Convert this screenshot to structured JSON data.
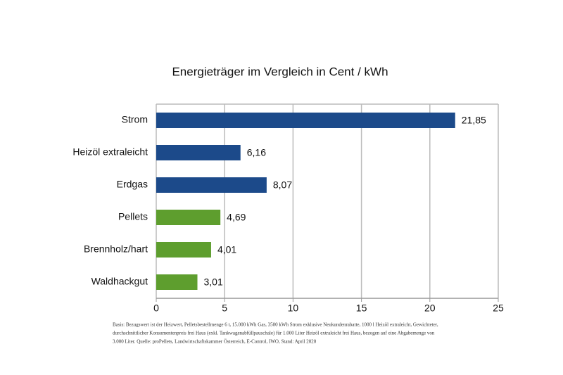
{
  "chart_data": {
    "type": "barh",
    "title": "Energieträger im Vergleich in Cent / kWh",
    "categories": [
      "Strom",
      "Heizöl extraleicht",
      "Erdgas",
      "Pellets",
      "Brennholz/hart",
      "Waldhackgut"
    ],
    "values": [
      21.85,
      6.16,
      8.07,
      4.69,
      4.01,
      3.01
    ],
    "value_labels": [
      "21,85",
      "6,16",
      "8,07",
      "4,69",
      "4,01",
      "3,01"
    ],
    "colors": [
      "#1c4a8a",
      "#1c4a8a",
      "#1c4a8a",
      "#5e9e2e",
      "#5e9e2e",
      "#5e9e2e"
    ],
    "xlim": [
      0,
      25
    ],
    "xticks": [
      0,
      5,
      10,
      15,
      20,
      25
    ],
    "grid": true,
    "note": [
      "Basis: Bezugswert ist der Heizwert, Pelletsbestellmenge 6 t, 15.000 kWh Gas, 3500 kWh Strom exklusive Neukundenrabatte, 1000 l Heizöl extraleicht, Gewichteter,",
      "durchschnittlicher Konsumentenpreis frei Haus (exkl. Tankwagenabfüllpauschale) für 1.000 Liter Heizöl extraleicht frei Haus, bezogen auf eine Abgabemenge von",
      "3.000 Liter. Quelle: proPellets, Landwirtschaftskammer Österreich, E-Control, IWO, Stand: April 2020"
    ]
  }
}
